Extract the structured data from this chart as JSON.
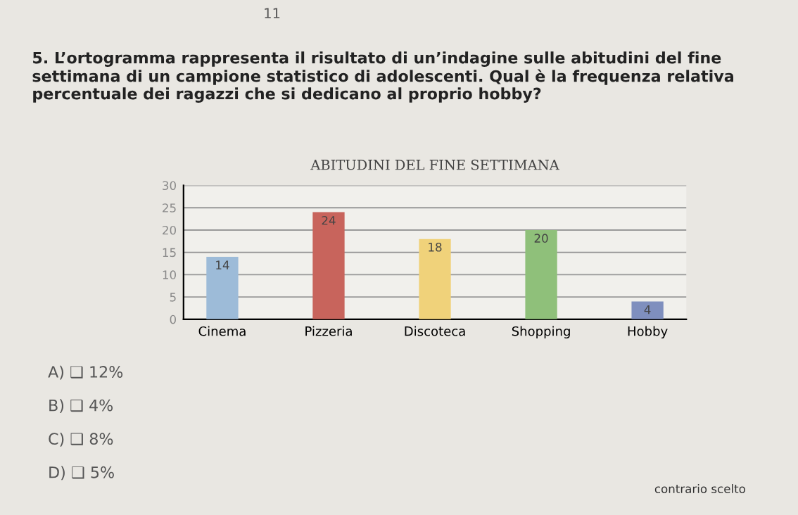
{
  "chart_data": {
    "type": "bar",
    "title": "ABITUDINI DEL FINE SETTIMANA",
    "categories": [
      "Cinema",
      "Pizzeria",
      "Discoteca",
      "Shopping",
      "Hobby"
    ],
    "values": [
      14,
      24,
      18,
      20,
      4
    ],
    "colors": [
      "#9dbbd8",
      "#c8645c",
      "#f0d27a",
      "#8fc07a",
      "#7f8fbe"
    ],
    "ylim": [
      0,
      30
    ],
    "yticks": [
      0,
      5,
      10,
      15,
      20,
      25,
      30
    ],
    "grid": "y",
    "data_labels": true,
    "annotations": [
      "11",
      "5. L’ortogramma rappresenta il risultato di un’indagine sulle abitudini del fine settimana di un campione statistico di adolescenti. Qual è la frequenza relativa percentuale dei ragazzi che si dedicano al proprio hobby?",
      "A) ❑ 12%",
      "B) ❑ 4%",
      "C) ❑ 8%",
      "D) ❑ 5%",
      "contrario scelto"
    ]
  }
}
